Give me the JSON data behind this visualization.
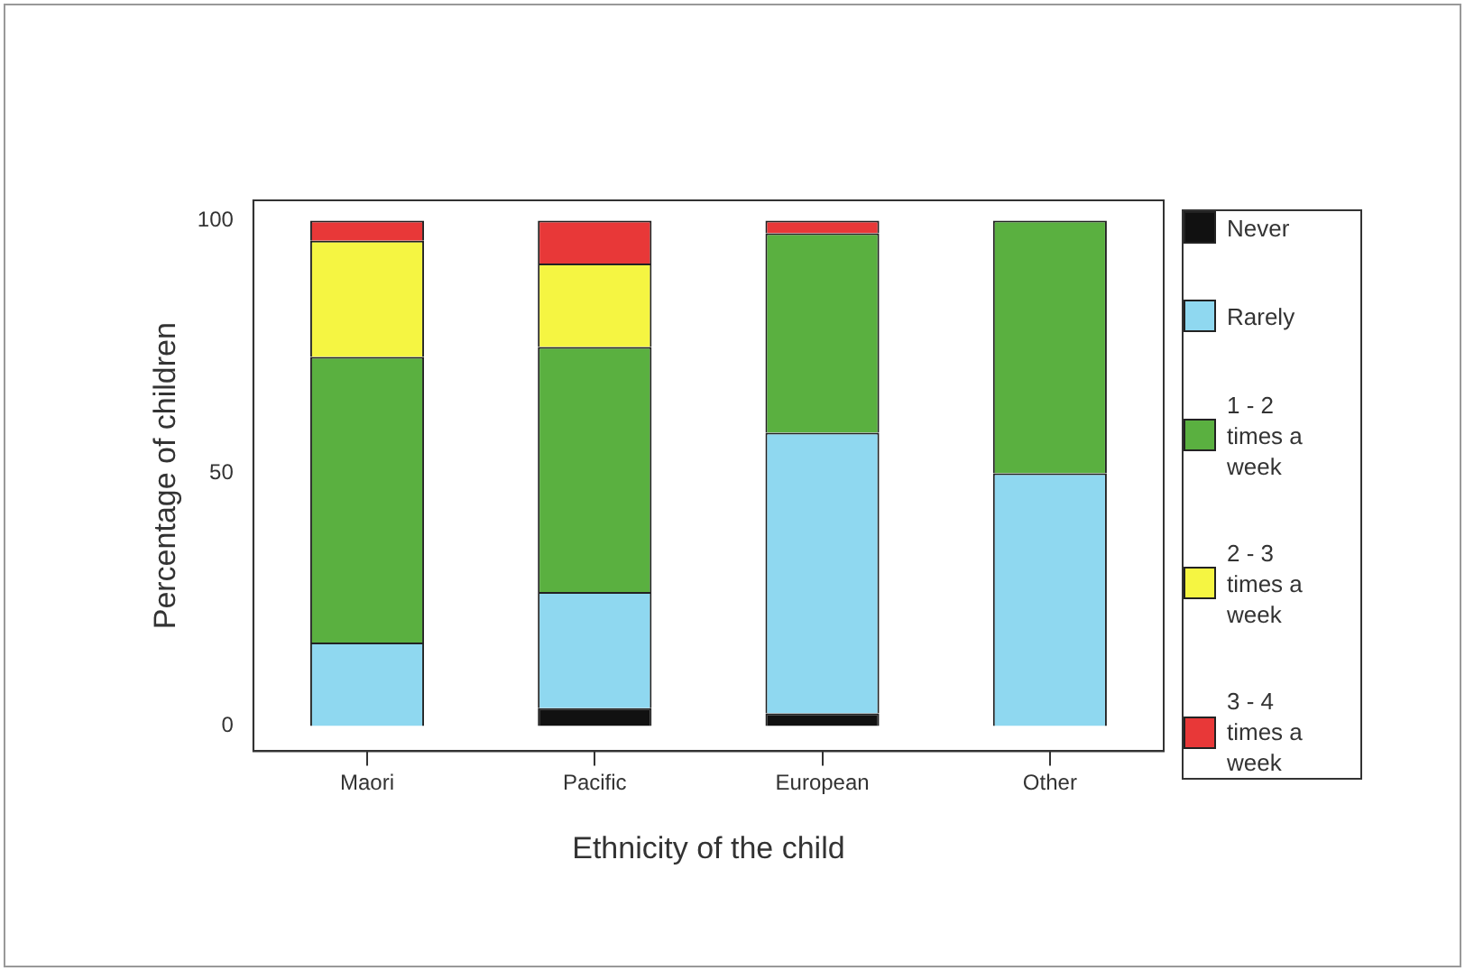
{
  "chart_data": {
    "type": "bar",
    "stacked": true,
    "xlabel": "Ethnicity of the child",
    "ylabel": "Percentage of children",
    "categories": [
      "Maori",
      "Pacific",
      "European",
      "Other"
    ],
    "series": [
      {
        "name": "Never",
        "color": "#111111",
        "values": [
          0,
          3.5,
          2.5,
          0
        ]
      },
      {
        "name": "Rarely",
        "color": "#8fd8f0",
        "values": [
          16.5,
          23,
          55.5,
          50
        ]
      },
      {
        "name": "1 - 2 times a week",
        "color": "#5ab040",
        "values": [
          56.5,
          48.5,
          39.5,
          50
        ]
      },
      {
        "name": "2 - 3 times a week",
        "color": "#f5f542",
        "values": [
          23,
          16.5,
          0,
          0
        ]
      },
      {
        "name": "3 - 4 times a week",
        "color": "#e83838",
        "values": [
          4,
          8.5,
          2.5,
          0
        ]
      }
    ],
    "ylim": [
      -5,
      104
    ],
    "yticks": [
      0,
      50,
      100
    ],
    "grid": false,
    "legend": "right"
  }
}
